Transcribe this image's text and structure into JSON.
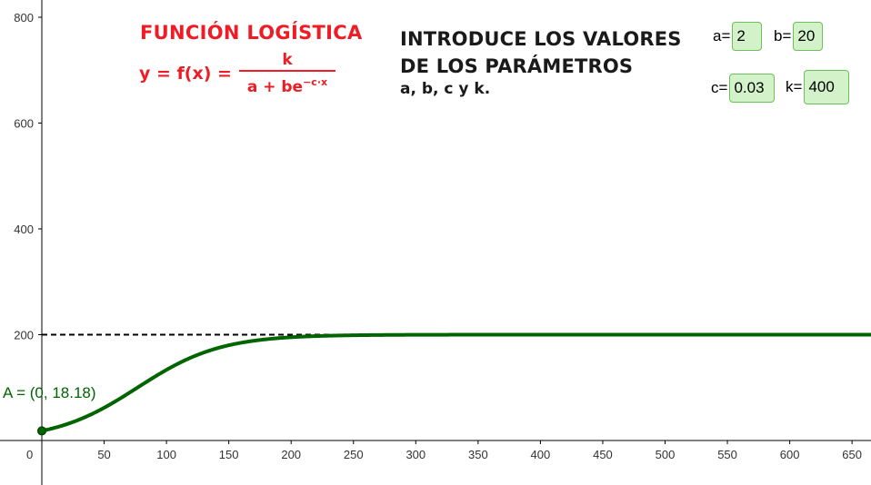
{
  "title": "FUNCIÓN LOGÍSTICA",
  "formula": {
    "lhs": "y = f(x) =",
    "numerator": "k",
    "denominator_base": "a + be",
    "denominator_exponent": "−c·x"
  },
  "instructions": {
    "line1": "INTRODUCE LOS VALORES",
    "line2": "DE LOS PARÁMETROS",
    "line3": "a, b, c  y  k."
  },
  "parameters": {
    "a": {
      "label": "a=",
      "value": "2"
    },
    "b": {
      "label": "b=",
      "value": "20"
    },
    "c": {
      "label": "c=",
      "value": "0.03"
    },
    "k": {
      "label": "k=",
      "value": "400"
    }
  },
  "point": {
    "label": "A = (0, 18.18)",
    "x": 0,
    "y": 18.18
  },
  "colors": {
    "curve": "#006400",
    "asymptote": "#000000",
    "title": "#ee1c24",
    "input_bg": "#d4f2c9",
    "input_border": "#6cc05a"
  },
  "chart_data": {
    "type": "line",
    "function": "k / (a + b*e^(-c*x))",
    "params": {
      "a": 2,
      "b": 20,
      "c": 0.03,
      "k": 400
    },
    "asymptote_y": 200,
    "x_ticks": [
      "50",
      "100",
      "150",
      "200",
      "250",
      "300",
      "350",
      "400",
      "450",
      "500",
      "550",
      "600",
      "650"
    ],
    "y_ticks": [
      "200",
      "400",
      "600",
      "800"
    ],
    "origin_label": "0",
    "xlim": [
      -33,
      667
    ],
    "ylim": [
      -40,
      830
    ]
  }
}
